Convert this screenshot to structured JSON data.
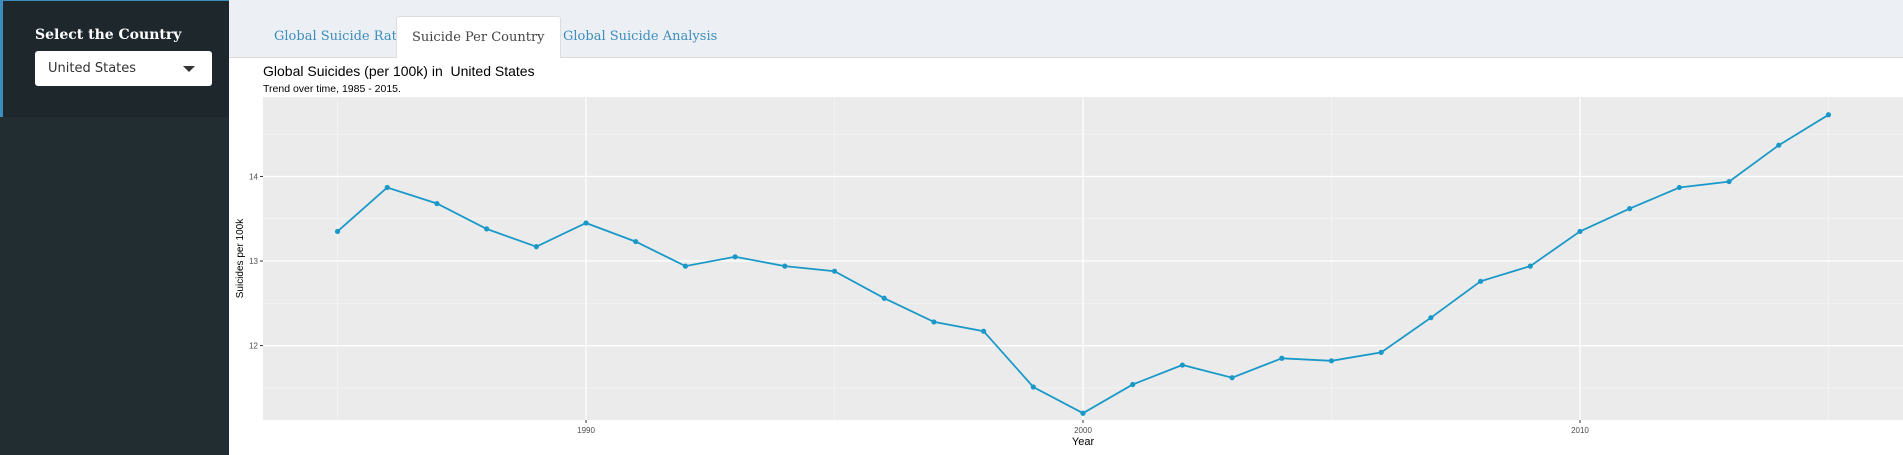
{
  "sidebar": {
    "label": "Select the Country",
    "select": {
      "value": "United States",
      "icon": "caret-down-icon"
    }
  },
  "tabs": [
    {
      "label": "Global Suicide Rates",
      "active": false
    },
    {
      "label": "Suicide Per Country",
      "active": true
    },
    {
      "label": "Global Suicide Analysis",
      "active": false
    }
  ],
  "chart": {
    "title": "Global Suicides (per 100k) in  United States",
    "subtitle": "Trend over time, 1985 - 2015."
  },
  "chart_data": {
    "type": "line",
    "title": "Global Suicides (per 100k) in  United States",
    "subtitle": "Trend over time, 1985 - 2015.",
    "xlabel": "Year",
    "ylabel": "Suicides per 100k",
    "xlim": [
      1983.5,
      2016.5
    ],
    "ylim": [
      11.12,
      14.94
    ],
    "xticks": [
      1990,
      2000,
      2010
    ],
    "yticks": [
      12,
      13,
      14
    ],
    "grid": true,
    "color": "#1a99c9",
    "series": [
      {
        "x": [
          1985,
          1986,
          1987,
          1988,
          1989,
          1990,
          1991,
          1992,
          1993,
          1994,
          1995,
          1996,
          1997,
          1998,
          1999,
          2000,
          2001,
          2002,
          2003,
          2004,
          2005,
          2006,
          2007,
          2008,
          2009,
          2010,
          2011,
          2012,
          2013,
          2014,
          2015
        ],
        "y": [
          13.35,
          13.87,
          13.68,
          13.38,
          13.17,
          13.45,
          13.23,
          12.94,
          13.05,
          12.94,
          12.88,
          12.56,
          12.28,
          12.17,
          11.51,
          11.2,
          11.54,
          11.77,
          11.62,
          11.85,
          11.82,
          11.92,
          12.33,
          12.76,
          12.94,
          13.35,
          13.62,
          13.87,
          13.94,
          14.37,
          14.73
        ]
      }
    ]
  }
}
